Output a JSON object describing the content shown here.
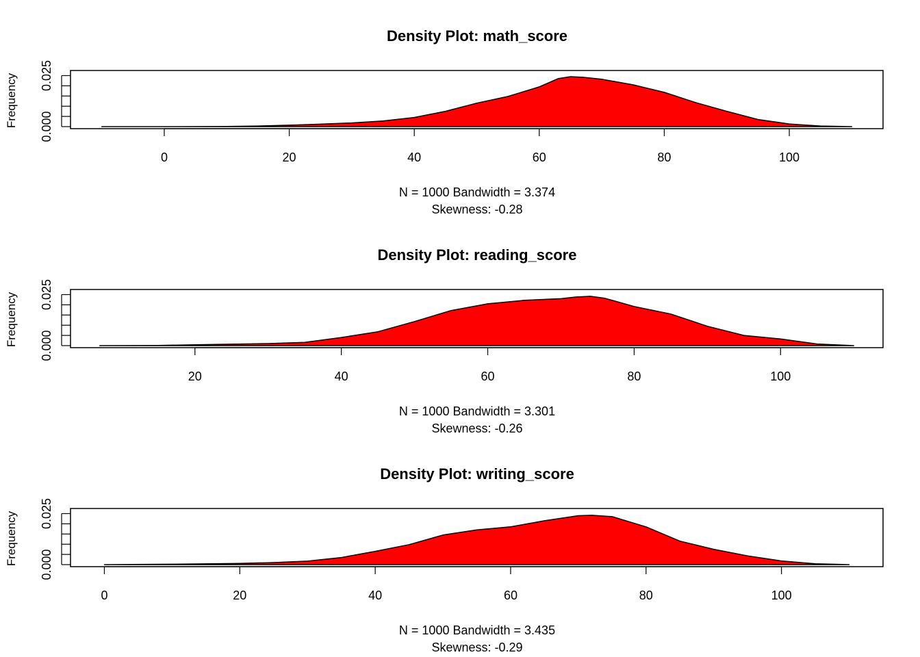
{
  "chart_data": [
    {
      "type": "area",
      "title": "Density Plot: math_score",
      "ylabel": "Frequency",
      "subtitle_line1": "N = 1000   Bandwidth = 3.374",
      "subtitle_line2": "Skewness: -0.28",
      "fill_color": "#ff0000",
      "xlim": [
        -15,
        115
      ],
      "ylim": [
        0,
        0.0265
      ],
      "x_ticks": [
        0,
        20,
        40,
        60,
        80,
        100
      ],
      "y_tick_labels": [
        "0.000",
        "0.025"
      ],
      "x": [
        -10,
        0,
        10,
        15,
        20,
        25,
        30,
        35,
        40,
        45,
        50,
        55,
        60,
        63,
        65,
        67,
        70,
        75,
        80,
        85,
        90,
        95,
        100,
        105,
        110
      ],
      "y": [
        0.0,
        0.0,
        0.0001,
        0.0003,
        0.0007,
        0.0012,
        0.0018,
        0.0028,
        0.0045,
        0.0075,
        0.0115,
        0.0148,
        0.0195,
        0.0235,
        0.0245,
        0.0242,
        0.0232,
        0.0205,
        0.0168,
        0.0118,
        0.0075,
        0.0035,
        0.0013,
        0.0003,
        0.0
      ]
    },
    {
      "type": "area",
      "title": "Density Plot: reading_score",
      "ylabel": "Frequency",
      "subtitle_line1": "N = 1000   Bandwidth = 3.301",
      "subtitle_line2": "Skewness: -0.26",
      "fill_color": "#ff0000",
      "xlim": [
        3,
        114
      ],
      "ylim": [
        0,
        0.0265
      ],
      "x_ticks": [
        20,
        40,
        60,
        80,
        100
      ],
      "y_tick_labels": [
        "0.000",
        "0.025"
      ],
      "x": [
        7,
        15,
        20,
        25,
        30,
        35,
        40,
        45,
        50,
        55,
        60,
        65,
        70,
        72,
        74,
        76,
        80,
        85,
        90,
        95,
        100,
        105,
        110
      ],
      "y": [
        0.0,
        0.0001,
        0.0004,
        0.0007,
        0.001,
        0.0016,
        0.004,
        0.0068,
        0.0118,
        0.0172,
        0.0205,
        0.0222,
        0.023,
        0.0238,
        0.0242,
        0.0232,
        0.0192,
        0.0155,
        0.0095,
        0.005,
        0.0033,
        0.0008,
        0.0
      ]
    },
    {
      "type": "area",
      "title": "Density Plot: writing_score",
      "ylabel": "Frequency",
      "subtitle_line1": "N = 1000   Bandwidth = 3.435",
      "subtitle_line2": "Skewness: -0.29",
      "fill_color": "#ff0000",
      "xlim": [
        -5,
        115
      ],
      "ylim": [
        0,
        0.0265
      ],
      "x_ticks": [
        0,
        20,
        40,
        60,
        80,
        100
      ],
      "y_tick_labels": [
        "0.000",
        "0.025"
      ],
      "x": [
        0,
        10,
        20,
        25,
        30,
        35,
        40,
        45,
        50,
        55,
        60,
        65,
        70,
        72,
        75,
        80,
        85,
        90,
        95,
        100,
        105,
        110
      ],
      "y": [
        0.0,
        0.0002,
        0.0006,
        0.001,
        0.0017,
        0.0035,
        0.0065,
        0.0098,
        0.0145,
        0.017,
        0.0185,
        0.0215,
        0.024,
        0.0242,
        0.0235,
        0.0185,
        0.0115,
        0.0075,
        0.0043,
        0.0018,
        0.0004,
        0.0
      ]
    }
  ]
}
